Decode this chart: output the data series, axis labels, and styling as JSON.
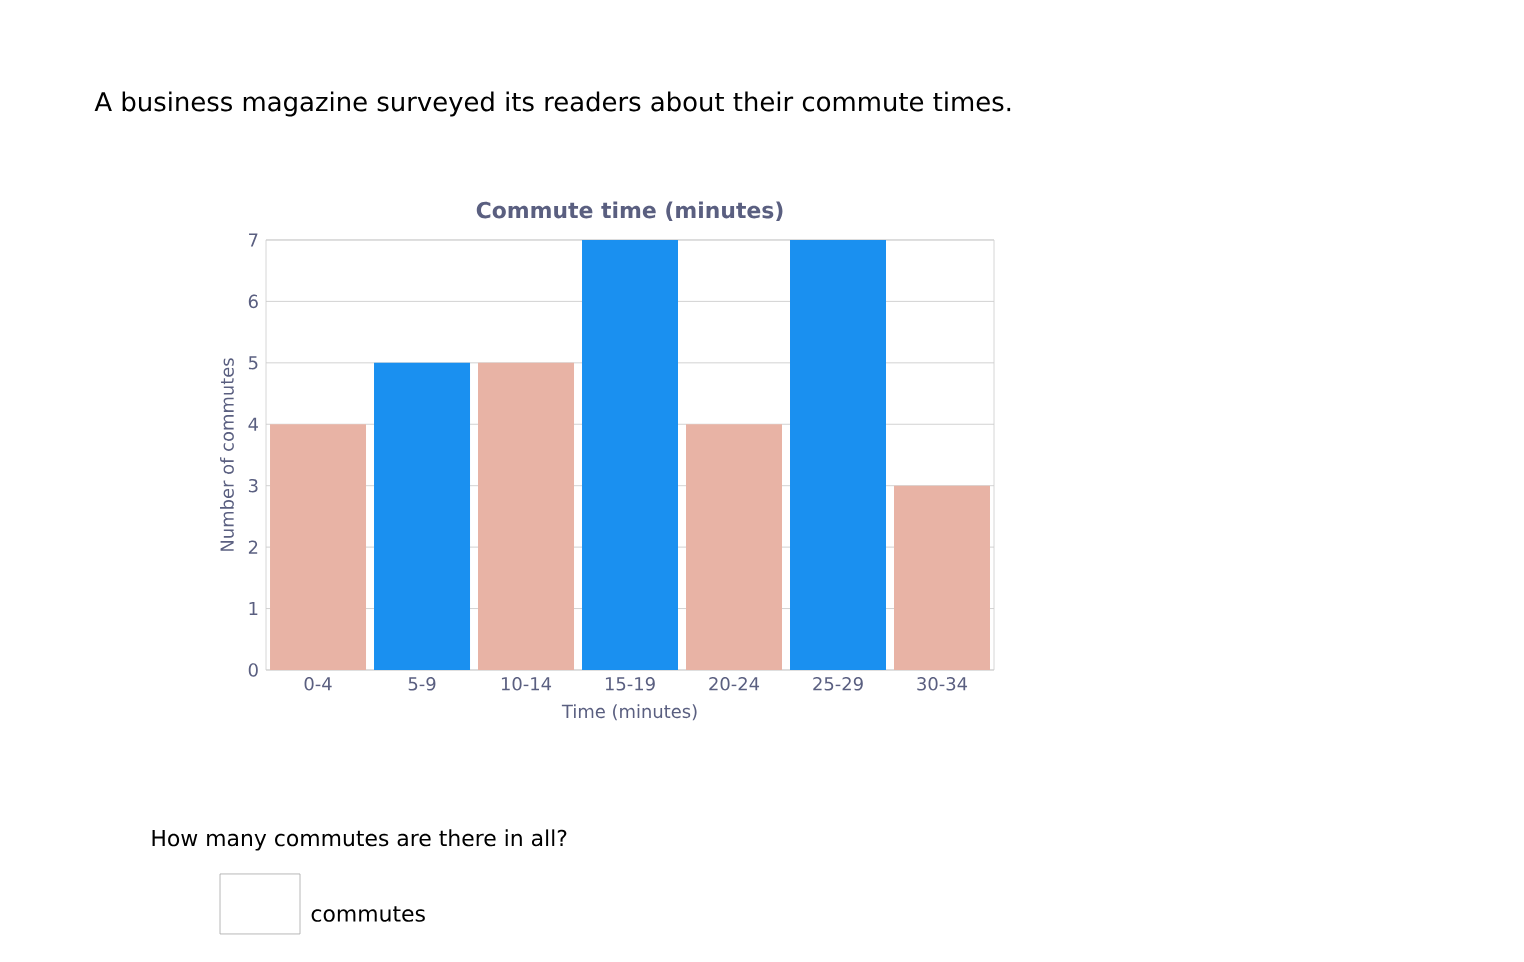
{
  "chart_data": {
    "type": "bar",
    "title": "Commute time (minutes)",
    "xlabel": "Time (minutes)",
    "ylabel": "Number of commutes",
    "categories": [
      "0-4",
      "5-9",
      "10-14",
      "15-19",
      "20-24",
      "25-29",
      "30-34"
    ],
    "values": [
      4,
      5,
      5,
      7,
      4,
      7,
      3
    ],
    "colors": [
      "#e8b3a5",
      "#1a90f0",
      "#e8b3a5",
      "#1a90f0",
      "#e8b3a5",
      "#1a90f0",
      "#e8b3a5"
    ],
    "ylim": [
      0,
      7
    ],
    "yticks": [
      0,
      1,
      2,
      3,
      4,
      5,
      6,
      7
    ],
    "grid": "y",
    "annotations": [
      "A business magazine surveyed its readers about their commute times.",
      "How many commutes are there in all?",
      "commutes"
    ]
  }
}
